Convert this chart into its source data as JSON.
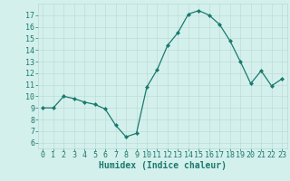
{
  "x": [
    0,
    1,
    2,
    3,
    4,
    5,
    6,
    7,
    8,
    9,
    10,
    11,
    12,
    13,
    14,
    15,
    16,
    17,
    18,
    19,
    20,
    21,
    22,
    23
  ],
  "y": [
    9.0,
    9.0,
    10.0,
    9.8,
    9.5,
    9.3,
    8.9,
    7.5,
    6.5,
    6.8,
    10.8,
    12.3,
    14.4,
    15.5,
    17.1,
    17.4,
    17.0,
    16.2,
    14.8,
    13.0,
    11.1,
    12.2,
    10.9,
    11.5
  ],
  "line_color": "#1a7a6e",
  "marker": "D",
  "marker_size": 2.0,
  "bg_color": "#d4f0ec",
  "grid_color": "#b8d8d4",
  "tick_color": "#1a7a6e",
  "xlabel": "Humidex (Indice chaleur)",
  "ylabel_ticks": [
    6,
    7,
    8,
    9,
    10,
    11,
    12,
    13,
    14,
    15,
    16,
    17
  ],
  "ylim": [
    5.5,
    18
  ],
  "xlim": [
    -0.5,
    23.5
  ],
  "xlabel_fontsize": 7,
  "tick_fontsize": 6,
  "linewidth": 0.9
}
